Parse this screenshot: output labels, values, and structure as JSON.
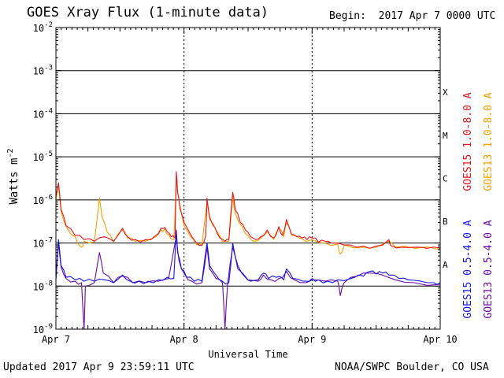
{
  "header": {
    "title": "GOES Xray Flux (1-minute data)",
    "begin_label": "Begin:",
    "begin_value": "2017 Apr 7 0000 UTC"
  },
  "footer": {
    "updated": "Updated 2017 Apr  9 23:59:11 UTC",
    "credit": "NOAA/SWPC Boulder, CO USA"
  },
  "chart_data": {
    "type": "line",
    "title": "GOES Xray Flux (1-minute data)",
    "xlabel": "Universal Time",
    "ylabel": "Watts m",
    "ylabel_sup": "-2",
    "y_scale": "log",
    "ylim": [
      1e-09,
      0.01
    ],
    "xlim_days": [
      0,
      3
    ],
    "x_ticks": [
      "Apr 7",
      "Apr 8",
      "Apr 9",
      "Apr 10"
    ],
    "y_ticks": [
      {
        "base": "10",
        "exp": "-9"
      },
      {
        "base": "10",
        "exp": "-8"
      },
      {
        "base": "10",
        "exp": "-7"
      },
      {
        "base": "10",
        "exp": "-6"
      },
      {
        "base": "10",
        "exp": "-5"
      },
      {
        "base": "10",
        "exp": "-4"
      },
      {
        "base": "10",
        "exp": "-3"
      },
      {
        "base": "10",
        "exp": "-2"
      }
    ],
    "flare_classes": [
      {
        "label": "A",
        "exp": -8
      },
      {
        "label": "B",
        "exp": -7
      },
      {
        "label": "C",
        "exp": -6
      },
      {
        "label": "M",
        "exp": -5
      },
      {
        "label": "X",
        "exp": -4
      }
    ],
    "grid": "horizontal at decades, dotted vertical at day boundaries",
    "legend_placement": "right-vertical",
    "series": [
      {
        "name": "GOES15 1.0-8.0 A",
        "color": "#e8141c",
        "values": [
          [
            0.0,
            1.2e-06
          ],
          [
            0.02,
            2.5e-06
          ],
          [
            0.04,
            6e-07
          ],
          [
            0.08,
            2.5e-07
          ],
          [
            0.15,
            1.5e-07
          ],
          [
            0.22,
            1.2e-07
          ],
          [
            0.3,
            1.1e-07
          ],
          [
            0.38,
            1.4e-07
          ],
          [
            0.45,
            1.1e-07
          ],
          [
            0.52,
            2.2e-07
          ],
          [
            0.56,
            1.4e-07
          ],
          [
            0.62,
            1.2e-07
          ],
          [
            0.7,
            1.2e-07
          ],
          [
            0.78,
            1.5e-07
          ],
          [
            0.82,
            2.2e-07
          ],
          [
            0.85,
            2.3e-07
          ],
          [
            0.87,
            1.8e-07
          ],
          [
            0.9,
            1.4e-07
          ],
          [
            0.93,
            1.3e-07
          ],
          [
            0.94,
            4.5e-06
          ],
          [
            0.95,
            1.5e-06
          ],
          [
            0.97,
            6e-07
          ],
          [
            1.0,
            3e-07
          ],
          [
            1.05,
            1.6e-07
          ],
          [
            1.1,
            1e-07
          ],
          [
            1.14,
            9e-08
          ],
          [
            1.17,
            1.5e-07
          ],
          [
            1.18,
            1.1e-06
          ],
          [
            1.2,
            4e-07
          ],
          [
            1.24,
            2.3e-07
          ],
          [
            1.28,
            1.3e-07
          ],
          [
            1.32,
            1.1e-07
          ],
          [
            1.35,
            1.2e-07
          ],
          [
            1.38,
            1.5e-06
          ],
          [
            1.4,
            6e-07
          ],
          [
            1.44,
            3e-07
          ],
          [
            1.48,
            2e-07
          ],
          [
            1.52,
            1.4e-07
          ],
          [
            1.56,
            1.2e-07
          ],
          [
            1.6,
            1.4e-07
          ],
          [
            1.65,
            2e-07
          ],
          [
            1.7,
            1.3e-07
          ],
          [
            1.74,
            2.4e-07
          ],
          [
            1.77,
            1.5e-07
          ],
          [
            1.8,
            3.5e-07
          ],
          [
            1.84,
            1.6e-07
          ],
          [
            1.88,
            1.4e-07
          ],
          [
            1.92,
            1.3e-07
          ],
          [
            1.96,
            1.2e-07
          ],
          [
            2.0,
            1.3e-07
          ],
          [
            2.05,
            1.05e-07
          ],
          [
            2.1,
            1.1e-07
          ],
          [
            2.15,
            1e-07
          ],
          [
            2.2,
            1e-07
          ],
          [
            2.3,
            9e-08
          ],
          [
            2.4,
            8.5e-08
          ],
          [
            2.5,
            8.5e-08
          ],
          [
            2.6,
            1.2e-07
          ],
          [
            2.62,
            8.5e-08
          ],
          [
            2.7,
            8e-08
          ],
          [
            2.8,
            8e-08
          ],
          [
            2.9,
            7.5e-08
          ],
          [
            3.0,
            7.5e-08
          ]
        ]
      },
      {
        "name": "GOES13 1.0-8.0 A",
        "color": "#f5a000",
        "values": [
          [
            0.0,
            1e-06
          ],
          [
            0.02,
            2.2e-06
          ],
          [
            0.04,
            5.5e-07
          ],
          [
            0.08,
            2.4e-07
          ],
          [
            0.15,
            1.4e-07
          ],
          [
            0.2,
            8e-08
          ],
          [
            0.22,
            1.1e-07
          ],
          [
            0.3,
            1.05e-07
          ],
          [
            0.34,
            1.1e-06
          ],
          [
            0.36,
            4e-07
          ],
          [
            0.4,
            1.8e-07
          ],
          [
            0.45,
            1.05e-07
          ],
          [
            0.52,
            2e-07
          ],
          [
            0.56,
            1.3e-07
          ],
          [
            0.62,
            1.1e-07
          ],
          [
            0.7,
            1.1e-07
          ],
          [
            0.78,
            1.4e-07
          ],
          [
            0.82,
            2e-07
          ],
          [
            0.85,
            2.1e-07
          ],
          [
            0.88,
            1.6e-07
          ],
          [
            0.92,
            1.2e-07
          ],
          [
            0.94,
            3e-06
          ],
          [
            0.96,
            1e-06
          ],
          [
            1.0,
            2.5e-07
          ],
          [
            1.05,
            1.4e-07
          ],
          [
            1.1,
            9e-08
          ],
          [
            1.14,
            8.5e-08
          ],
          [
            1.18,
            9e-07
          ],
          [
            1.2,
            3.5e-07
          ],
          [
            1.25,
            2e-07
          ],
          [
            1.3,
            1.1e-07
          ],
          [
            1.35,
            1.1e-07
          ],
          [
            1.38,
            1.2e-06
          ],
          [
            1.4,
            5e-07
          ],
          [
            1.45,
            2.5e-07
          ],
          [
            1.5,
            1.5e-07
          ],
          [
            1.55,
            1.1e-07
          ],
          [
            1.6,
            1.3e-07
          ],
          [
            1.65,
            1.8e-07
          ],
          [
            1.7,
            1.2e-07
          ],
          [
            1.74,
            2.2e-07
          ],
          [
            1.78,
            1.4e-07
          ],
          [
            1.8,
            3e-07
          ],
          [
            1.84,
            1.5e-07
          ],
          [
            1.9,
            1.3e-07
          ],
          [
            1.95,
            1.1e-07
          ],
          [
            2.0,
            1.2e-07
          ],
          [
            2.1,
            1e-07
          ],
          [
            2.2,
            9.5e-08
          ],
          [
            2.22,
            5.5e-08
          ],
          [
            2.25,
            9e-08
          ],
          [
            2.4,
            8e-08
          ],
          [
            2.5,
            8e-08
          ],
          [
            2.6,
            1.1e-07
          ],
          [
            2.65,
            8e-08
          ],
          [
            2.8,
            7.5e-08
          ],
          [
            3.0,
            7e-08
          ]
        ]
      },
      {
        "name": "GOES15 0.5-4.0 A",
        "color": "#1414e6",
        "values": [
          [
            0.0,
            1.5e-08
          ],
          [
            0.02,
            1.2e-07
          ],
          [
            0.04,
            3e-08
          ],
          [
            0.08,
            1.6e-08
          ],
          [
            0.15,
            1.4e-08
          ],
          [
            0.22,
            1.3e-08
          ],
          [
            0.3,
            1.3e-08
          ],
          [
            0.38,
            1.4e-08
          ],
          [
            0.45,
            1.2e-08
          ],
          [
            0.52,
            1.8e-08
          ],
          [
            0.58,
            1.3e-08
          ],
          [
            0.65,
            1.3e-08
          ],
          [
            0.72,
            1.3e-08
          ],
          [
            0.8,
            1.4e-08
          ],
          [
            0.87,
            1.6e-08
          ],
          [
            0.92,
            1.5e-08
          ],
          [
            0.94,
            2e-07
          ],
          [
            0.95,
            6e-08
          ],
          [
            0.98,
            2.5e-08
          ],
          [
            1.02,
            1.6e-08
          ],
          [
            1.08,
            1.3e-08
          ],
          [
            1.14,
            1.3e-08
          ],
          [
            1.18,
            1e-07
          ],
          [
            1.2,
            3e-08
          ],
          [
            1.25,
            1.8e-08
          ],
          [
            1.3,
            1.3e-08
          ],
          [
            1.35,
            1.2e-08
          ],
          [
            1.38,
            1e-07
          ],
          [
            1.42,
            3e-08
          ],
          [
            1.48,
            1.6e-08
          ],
          [
            1.52,
            1.3e-08
          ],
          [
            1.58,
            1.4e-08
          ],
          [
            1.62,
            2e-08
          ],
          [
            1.66,
            1.5e-08
          ],
          [
            1.72,
            1.6e-08
          ],
          [
            1.78,
            1.4e-08
          ],
          [
            1.8,
            2.5e-08
          ],
          [
            1.85,
            1.5e-08
          ],
          [
            1.9,
            1.4e-08
          ],
          [
            1.95,
            1.3e-08
          ],
          [
            2.0,
            1.5e-08
          ],
          [
            2.05,
            1.4e-08
          ],
          [
            2.12,
            1.3e-08
          ],
          [
            2.2,
            1.4e-08
          ],
          [
            2.3,
            1.5e-08
          ],
          [
            2.36,
            1.8e-08
          ],
          [
            2.4,
            1.7e-08
          ],
          [
            2.45,
            2.2e-08
          ],
          [
            2.5,
            1.9e-08
          ],
          [
            2.55,
            2e-08
          ],
          [
            2.6,
            1.8e-08
          ],
          [
            2.68,
            1.5e-08
          ],
          [
            2.75,
            1.4e-08
          ],
          [
            2.85,
            1.3e-08
          ],
          [
            2.95,
            1.2e-08
          ],
          [
            3.0,
            1.2e-08
          ]
        ]
      },
      {
        "name": "GOES13 0.5-4.0 A",
        "color": "#6a0aa0",
        "values": [
          [
            0.0,
            1.4e-08
          ],
          [
            0.02,
            1e-07
          ],
          [
            0.04,
            2.8e-08
          ],
          [
            0.08,
            1.5e-08
          ],
          [
            0.15,
            1.3e-08
          ],
          [
            0.2,
            1.2e-08
          ],
          [
            0.22,
            1e-09
          ],
          [
            0.23,
            1e-08
          ],
          [
            0.3,
            1.2e-08
          ],
          [
            0.34,
            6e-08
          ],
          [
            0.37,
            2e-08
          ],
          [
            0.45,
            1.2e-08
          ],
          [
            0.52,
            1.7e-08
          ],
          [
            0.6,
            1.2e-08
          ],
          [
            0.7,
            1.2e-08
          ],
          [
            0.8,
            1.3e-08
          ],
          [
            0.88,
            1.5e-08
          ],
          [
            0.94,
            1.5e-07
          ],
          [
            0.96,
            4e-08
          ],
          [
            1.0,
            2e-08
          ],
          [
            1.06,
            1.3e-08
          ],
          [
            1.14,
            1.2e-08
          ],
          [
            1.18,
            8e-08
          ],
          [
            1.2,
            2.5e-08
          ],
          [
            1.25,
            1.5e-08
          ],
          [
            1.3,
            1.2e-08
          ],
          [
            1.32,
            1e-09
          ],
          [
            1.34,
            1.1e-08
          ],
          [
            1.38,
            8e-08
          ],
          [
            1.42,
            2.5e-08
          ],
          [
            1.5,
            1.4e-08
          ],
          [
            1.58,
            1.3e-08
          ],
          [
            1.62,
            1.8e-08
          ],
          [
            1.68,
            1.4e-08
          ],
          [
            1.74,
            1.5e-08
          ],
          [
            1.8,
            2.2e-08
          ],
          [
            1.86,
            1.4e-08
          ],
          [
            1.95,
            1.2e-08
          ],
          [
            2.0,
            1.4e-08
          ],
          [
            2.1,
            1.3e-08
          ],
          [
            2.2,
            1.3e-08
          ],
          [
            2.22,
            6e-09
          ],
          [
            2.25,
            1.2e-08
          ],
          [
            2.35,
            1.7e-08
          ],
          [
            2.45,
            2e-08
          ],
          [
            2.55,
            1.8e-08
          ],
          [
            2.65,
            1.4e-08
          ],
          [
            2.8,
            1.2e-08
          ],
          [
            3.0,
            1.1e-08
          ]
        ]
      }
    ]
  }
}
